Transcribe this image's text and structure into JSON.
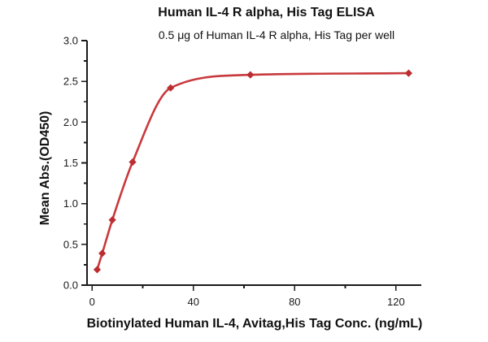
{
  "chart_data": {
    "type": "scatter",
    "title": "Human IL-4 R alpha, His Tag ELISA",
    "subtitle": "0.5 μg of Human IL-4 R alpha, His Tag per well",
    "xlabel": "Biotinylated Human IL-4, Avitag,His Tag Conc. (ng/mL)",
    "ylabel": "Mean Abs.(OD450)",
    "points": [
      {
        "x": 2,
        "y": 0.19
      },
      {
        "x": 4,
        "y": 0.39
      },
      {
        "x": 8,
        "y": 0.8
      },
      {
        "x": 16,
        "y": 1.51
      },
      {
        "x": 31,
        "y": 2.42
      },
      {
        "x": 62.5,
        "y": 2.58
      },
      {
        "x": 125,
        "y": 2.6
      }
    ],
    "curve": "smooth saturation fit through points",
    "marker": "diamond",
    "xlim": [
      -2,
      130
    ],
    "ylim": [
      0,
      3.0
    ],
    "x_major_ticks": [
      0,
      40,
      80,
      120
    ],
    "x_minor_ticks": [
      20,
      60,
      100
    ],
    "y_major_ticks": [
      0.0,
      0.5,
      1.0,
      1.5,
      2.0,
      2.5,
      3.0
    ],
    "y_minor_ticks": [
      0.25,
      0.75,
      1.25,
      1.75,
      2.25,
      2.75
    ],
    "y_tick_decimals": 1,
    "grid": false,
    "legend_visible": false,
    "line_color": "#c8393c",
    "marker_color": "#bb2d30",
    "axis_color": "#1a1a1a",
    "tick_label_color": "#1a1a1a",
    "background_color": "#ffffff"
  }
}
